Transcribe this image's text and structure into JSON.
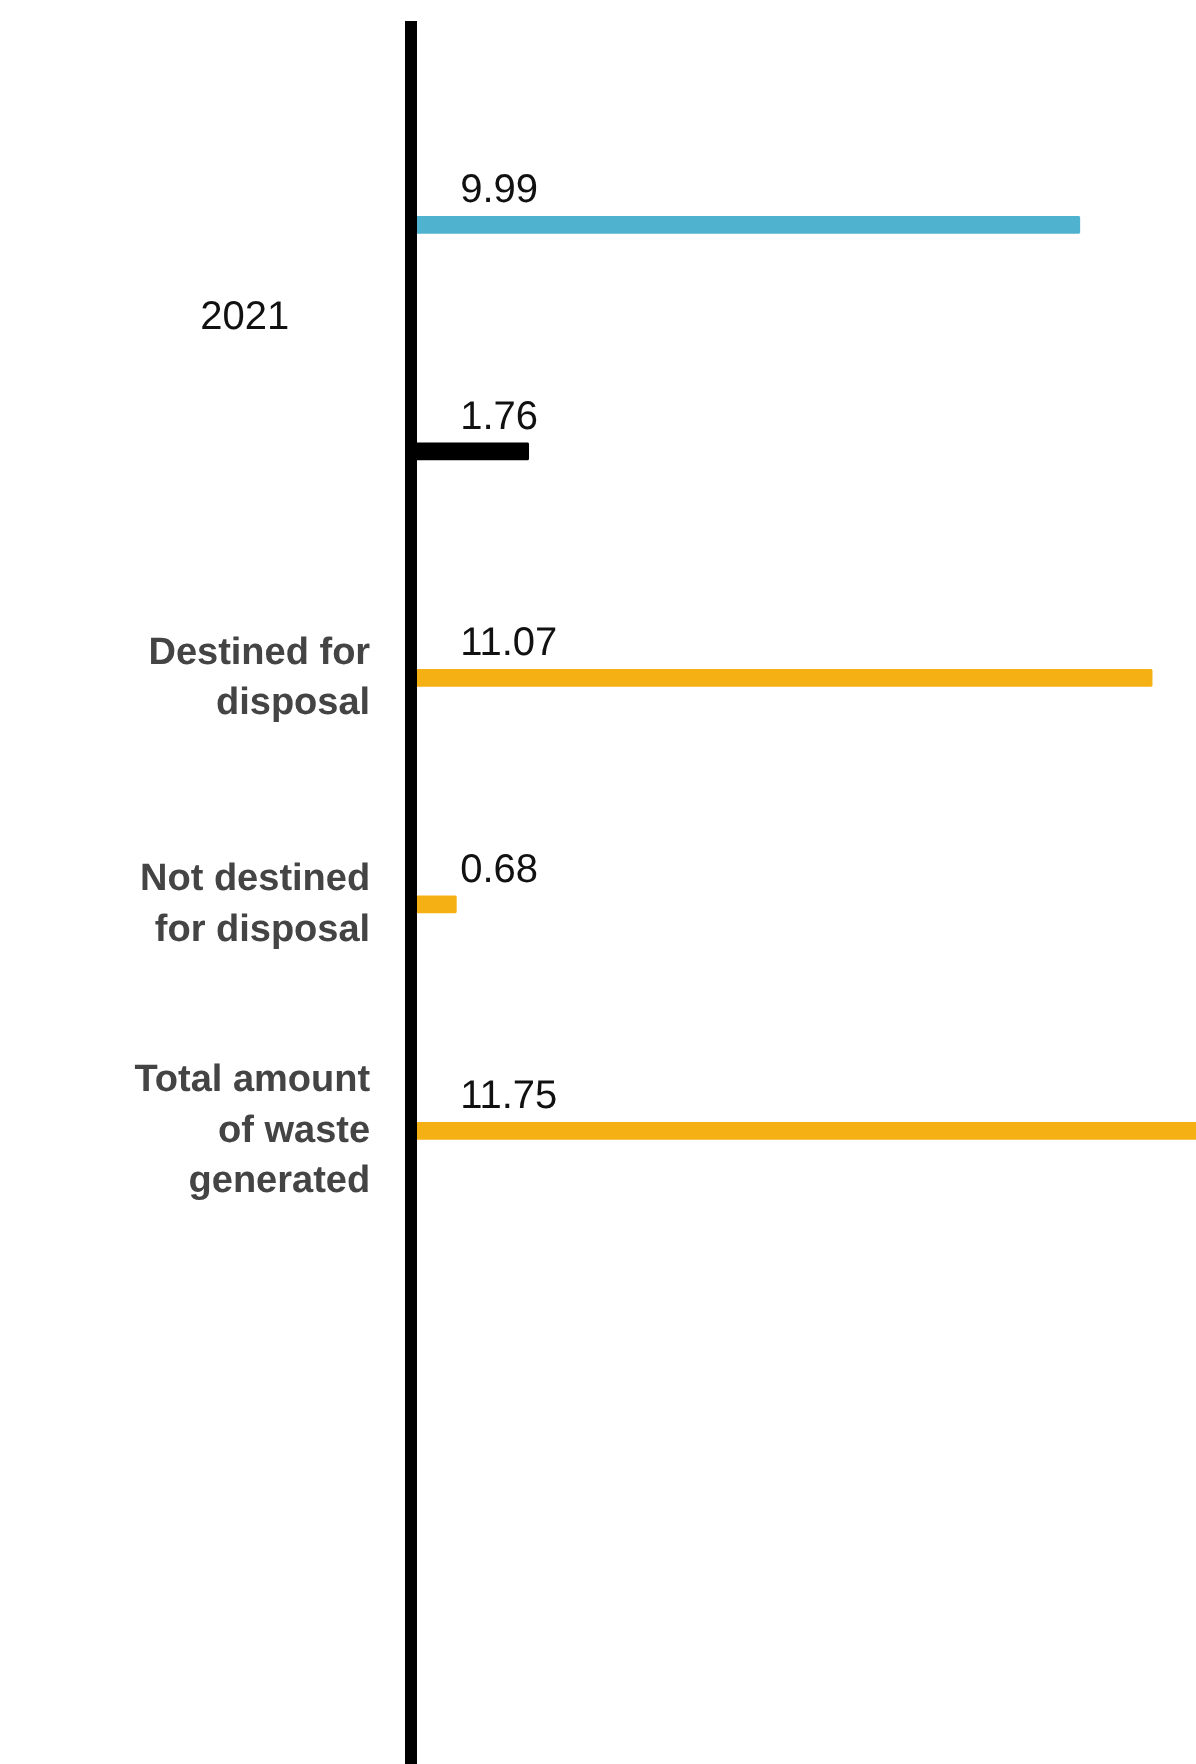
{
  "chart_data": {
    "type": "bar",
    "orientation": "horizontal",
    "categories": [
      null,
      null,
      "Destined for disposal",
      "Not destined for disposal",
      "Total amount of waste generated"
    ],
    "values": [
      9.99,
      1.76,
      11.07,
      0.68,
      11.75
    ],
    "colors": [
      "#4fb3cf",
      "#000000",
      "#f5b014",
      "#f5b014",
      "#f5b014"
    ],
    "data_labels": true,
    "annotations": [
      "2021"
    ],
    "grid": false
  }
}
